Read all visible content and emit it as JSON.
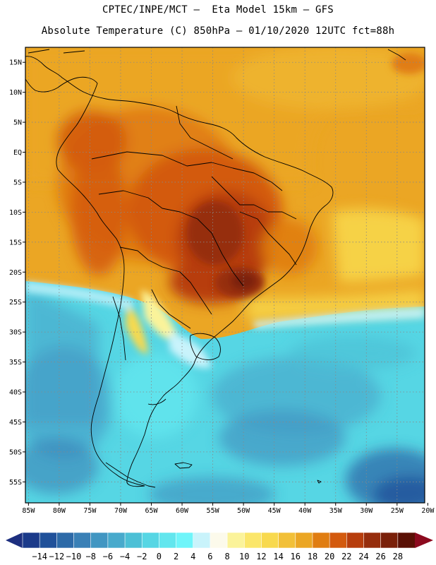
{
  "title": {
    "line1": "CPTEC/INPE/MCT –  Eta Model 15km – GFS",
    "line2": "Absolute Temperature (C) 850hPa – 01/10/2020 12UTC fct=88h"
  },
  "map": {
    "lat_labels": [
      "15N",
      "10N",
      "5N",
      "EQ",
      "5S",
      "10S",
      "15S",
      "20S",
      "25S",
      "30S",
      "35S",
      "40S",
      "45S",
      "50S",
      "55S"
    ],
    "lon_labels": [
      "85W",
      "80W",
      "75W",
      "70W",
      "65W",
      "60W",
      "55W",
      "50W",
      "45W",
      "40W",
      "35W",
      "30W",
      "25W",
      "20W"
    ],
    "lat_range": [
      17.5,
      -58.5
    ],
    "lon_range": [
      -85.5,
      -20.5
    ]
  },
  "colorbar": {
    "labels": [
      "-14",
      "-12",
      "-10",
      "-8",
      "-6",
      "-4",
      "-2",
      "0",
      "2",
      "4",
      "6",
      "8",
      "10",
      "12",
      "14",
      "16",
      "18",
      "20",
      "22",
      "24",
      "26",
      "28"
    ],
    "colors": [
      "#1b3a8a",
      "#20519a",
      "#2d6aa8",
      "#3a80b6",
      "#4196c2",
      "#48aacc",
      "#4cc0d6",
      "#56d6e4",
      "#62e6ee",
      "#6ff5fa",
      "#c9f3fb",
      "#fcfaeb",
      "#fbf39a",
      "#fbe66a",
      "#f8d94e",
      "#f2c038",
      "#eba624",
      "#e07d12",
      "#d35a0e",
      "#b73d0c",
      "#962d0c",
      "#7a2009",
      "#5a1005"
    ],
    "over_color": "#8c0a1e",
    "under_color": "#1d2f7f"
  }
}
